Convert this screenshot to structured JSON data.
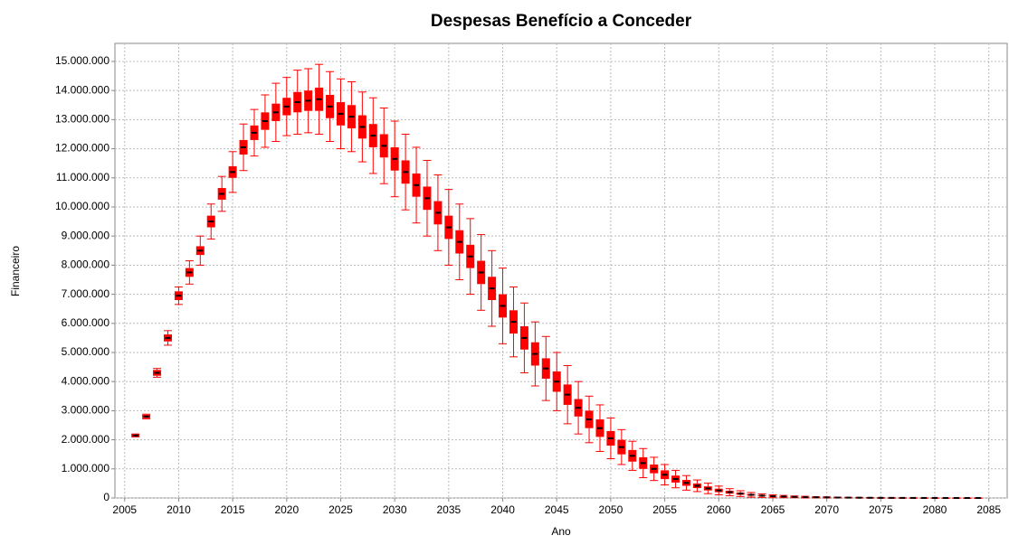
{
  "chart_data": {
    "type": "box",
    "title": "Despesas Benefício a Conceder",
    "x_label": "Ano",
    "y_label": "Financeiro",
    "color": "#ff0000",
    "median_color": "#000000",
    "grid": true,
    "xlim": [
      2004.1,
      2086.7
    ],
    "xticks": [
      2005,
      2010,
      2015,
      2020,
      2025,
      2030,
      2035,
      2040,
      2045,
      2050,
      2055,
      2060,
      2065,
      2070,
      2075,
      2080,
      2085
    ],
    "ylim": [
      0,
      15620000
    ],
    "yticks": [
      0,
      {
        "value": 1000000,
        "label": "1.000.000"
      },
      {
        "value": 2000000,
        "label": "2.000.000"
      },
      {
        "value": 3000000,
        "label": "3.000.000"
      },
      {
        "value": 4000000,
        "label": "4.000.000"
      },
      {
        "value": 5000000,
        "label": "5.000.000"
      },
      {
        "value": 6000000,
        "label": "6.000.000"
      },
      {
        "value": 7000000,
        "label": "7.000.000"
      },
      {
        "value": 8000000,
        "label": "8.000.000"
      },
      {
        "value": 9000000,
        "label": "9.000.000"
      },
      {
        "value": 10000000,
        "label": "10.000.000"
      },
      {
        "value": 11000000,
        "label": "11.000.000"
      },
      {
        "value": 12000000,
        "label": "12.000.000"
      },
      {
        "value": 13000000,
        "label": "13.000.000"
      },
      {
        "value": 14000000,
        "label": "14.000.000"
      },
      {
        "value": 15000000,
        "label": "15.000.000"
      }
    ],
    "x": [
      2006,
      2007,
      2008,
      2009,
      2010,
      2011,
      2012,
      2013,
      2014,
      2015,
      2016,
      2017,
      2018,
      2019,
      2020,
      2021,
      2022,
      2023,
      2024,
      2025,
      2026,
      2027,
      2028,
      2029,
      2030,
      2031,
      2032,
      2033,
      2034,
      2035,
      2036,
      2037,
      2038,
      2039,
      2040,
      2041,
      2042,
      2043,
      2044,
      2045,
      2046,
      2047,
      2048,
      2049,
      2050,
      2051,
      2052,
      2053,
      2054,
      2055,
      2056,
      2057,
      2058,
      2059,
      2060,
      2061,
      2062,
      2063,
      2064,
      2065,
      2066,
      2067,
      2068,
      2069,
      2070,
      2071,
      2072,
      2073,
      2074,
      2075,
      2076,
      2077,
      2078,
      2079,
      2080,
      2081,
      2082,
      2083,
      2084
    ],
    "whisker_low": [
      2100000,
      2720000,
      4150000,
      5250000,
      6650000,
      7350000,
      8000000,
      8900000,
      9850000,
      10500000,
      11250000,
      11750000,
      12050000,
      12250000,
      12450000,
      12500000,
      12550000,
      12500000,
      12250000,
      12000000,
      11900000,
      11550000,
      11150000,
      10800000,
      10350000,
      9900000,
      9450000,
      9000000,
      8500000,
      8000000,
      7500000,
      7000000,
      6450000,
      5900000,
      5300000,
      4850000,
      4300000,
      3850000,
      3350000,
      3000000,
      2550000,
      2200000,
      1900000,
      1600000,
      1350000,
      1150000,
      950000,
      700000,
      600000,
      450000,
      350000,
      270000,
      220000,
      150000,
      110000,
      80000,
      50000,
      30000,
      20000,
      10000,
      10000,
      10000,
      0,
      5000,
      0,
      0,
      0,
      0,
      0,
      0,
      0,
      0,
      0,
      0,
      0,
      0,
      0,
      0,
      0
    ],
    "q1": [
      2100000,
      2740000,
      4200000,
      5380000,
      6800000,
      7600000,
      8350000,
      9300000,
      10250000,
      11000000,
      11800000,
      12300000,
      12650000,
      12950000,
      13150000,
      13250000,
      13300000,
      13300000,
      13050000,
      12800000,
      12700000,
      12350000,
      12050000,
      11700000,
      11250000,
      10800000,
      10350000,
      9900000,
      9400000,
      8900000,
      8400000,
      7900000,
      7350000,
      6800000,
      6200000,
      5650000,
      5100000,
      4550000,
      4100000,
      3650000,
      3200000,
      2800000,
      2400000,
      2100000,
      1800000,
      1500000,
      1250000,
      1000000,
      850000,
      650000,
      530000,
      420000,
      340000,
      260000,
      200000,
      150000,
      110000,
      80000,
      60000,
      40000,
      40000,
      30000,
      20000,
      15000,
      15000,
      10000,
      8000,
      7000,
      6000,
      4000,
      4000,
      3000,
      2000,
      1000,
      1000,
      1000,
      1000,
      0,
      0
    ],
    "median": [
      2150000,
      2800000,
      4300000,
      5500000,
      6950000,
      7750000,
      8500000,
      9500000,
      10450000,
      11200000,
      12050000,
      12550000,
      12950000,
      13250000,
      13450000,
      13600000,
      13650000,
      13700000,
      13450000,
      13200000,
      13100000,
      12750000,
      12450000,
      12100000,
      11650000,
      11200000,
      10750000,
      10300000,
      9800000,
      9300000,
      8800000,
      8300000,
      7750000,
      7200000,
      6600000,
      6050000,
      5500000,
      4950000,
      4450000,
      4000000,
      3550000,
      3100000,
      2700000,
      2400000,
      2050000,
      1750000,
      1450000,
      1200000,
      1000000,
      800000,
      650000,
      520000,
      420000,
      330000,
      260000,
      200000,
      150000,
      110000,
      80000,
      60000,
      50000,
      40000,
      30000,
      25000,
      20000,
      15000,
      12000,
      10000,
      8000,
      6000,
      5000,
      4000,
      3000,
      2000,
      2000,
      1000,
      1000,
      1000,
      1000
    ],
    "q3": [
      2200000,
      2860000,
      4400000,
      5620000,
      7100000,
      7900000,
      8650000,
      9700000,
      10650000,
      11400000,
      12300000,
      12800000,
      13250000,
      13550000,
      13750000,
      13950000,
      14000000,
      14100000,
      13850000,
      13600000,
      13500000,
      13150000,
      12850000,
      12500000,
      12050000,
      11600000,
      11150000,
      10700000,
      10200000,
      9700000,
      9200000,
      8700000,
      8150000,
      7600000,
      7000000,
      6450000,
      5900000,
      5350000,
      4800000,
      4350000,
      3900000,
      3400000,
      3000000,
      2700000,
      2300000,
      2000000,
      1650000,
      1400000,
      1150000,
      950000,
      770000,
      620000,
      500000,
      400000,
      320000,
      250000,
      190000,
      140000,
      100000,
      80000,
      60000,
      50000,
      40000,
      35000,
      25000,
      20000,
      16000,
      13000,
      10000,
      8000,
      6000,
      5000,
      4000,
      3000,
      3000,
      2000,
      2000,
      1000,
      1000
    ],
    "whisker_high": [
      2200000,
      2880000,
      4450000,
      5750000,
      7250000,
      8150000,
      9000000,
      10100000,
      11050000,
      11900000,
      12850000,
      13350000,
      13850000,
      14250000,
      14450000,
      14700000,
      14750000,
      14900000,
      14650000,
      14400000,
      14300000,
      13950000,
      13750000,
      13400000,
      12950000,
      12500000,
      12050000,
      11600000,
      11100000,
      10600000,
      10100000,
      9600000,
      9050000,
      8500000,
      7900000,
      7250000,
      6700000,
      6050000,
      5550000,
      5000000,
      4550000,
      4000000,
      3500000,
      3200000,
      2750000,
      2350000,
      1950000,
      1700000,
      1400000,
      1150000,
      950000,
      770000,
      620000,
      510000,
      410000,
      320000,
      250000,
      190000,
      140000,
      110000,
      90000,
      70000,
      60000,
      45000,
      40000,
      30000,
      24000,
      20000,
      16000,
      12000,
      10000,
      8000,
      6000,
      4000,
      4000,
      3000,
      3000,
      2000,
      2000
    ]
  }
}
